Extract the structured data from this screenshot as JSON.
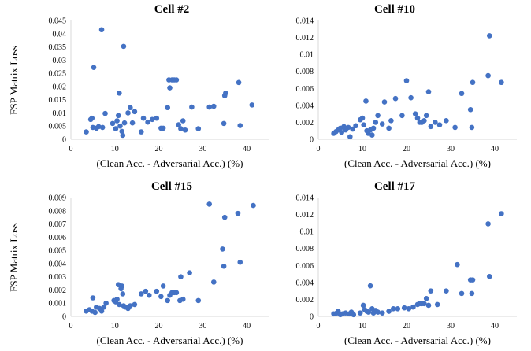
{
  "colors": {
    "marker": "#4472c4",
    "axis": "#d9d9d9",
    "text": "#000000"
  },
  "chart_data": [
    {
      "type": "scatter",
      "title": "Cell #2",
      "xlabel": "(Clean Acc. - Adversarial Acc.) (%)",
      "ylabel": "FSP Matrix Loss",
      "xlim": [
        0,
        45
      ],
      "ylim": [
        0,
        0.045
      ],
      "x_ticks": [
        "0",
        "10",
        "20",
        "30",
        "40"
      ],
      "y_ticks": [
        "0",
        "0.005",
        "0.01",
        "0.015",
        "0.02",
        "0.025",
        "0.03",
        "0.035",
        "0.04",
        "0.045"
      ],
      "points": [
        [
          3.5,
          0.0028
        ],
        [
          4.5,
          0.0075
        ],
        [
          4.8,
          0.008
        ],
        [
          5.0,
          0.0045
        ],
        [
          5.2,
          0.0272
        ],
        [
          5.8,
          0.0042
        ],
        [
          6.3,
          0.0048
        ],
        [
          7.0,
          0.0415
        ],
        [
          7.2,
          0.0045
        ],
        [
          7.8,
          0.0098
        ],
        [
          9.5,
          0.006
        ],
        [
          10.2,
          0.004
        ],
        [
          10.5,
          0.007
        ],
        [
          10.8,
          0.009
        ],
        [
          11.0,
          0.0175
        ],
        [
          11.2,
          0.005
        ],
        [
          11.6,
          0.003
        ],
        [
          11.8,
          0.0015
        ],
        [
          12.0,
          0.0352
        ],
        [
          12.2,
          0.0062
        ],
        [
          13.0,
          0.01
        ],
        [
          13.5,
          0.012
        ],
        [
          14.0,
          0.0062
        ],
        [
          14.5,
          0.0105
        ],
        [
          16.0,
          0.0028
        ],
        [
          16.5,
          0.008
        ],
        [
          17.5,
          0.0065
        ],
        [
          18.5,
          0.0075
        ],
        [
          19.5,
          0.008
        ],
        [
          20.5,
          0.0042
        ],
        [
          21.0,
          0.0042
        ],
        [
          22.0,
          0.012
        ],
        [
          22.3,
          0.0225
        ],
        [
          22.5,
          0.0195
        ],
        [
          23.0,
          0.0225
        ],
        [
          23.5,
          0.0225
        ],
        [
          24.0,
          0.0225
        ],
        [
          24.5,
          0.0055
        ],
        [
          25.0,
          0.004
        ],
        [
          25.5,
          0.007
        ],
        [
          26.0,
          0.0035
        ],
        [
          27.5,
          0.0122
        ],
        [
          29.0,
          0.004
        ],
        [
          31.5,
          0.0122
        ],
        [
          32.5,
          0.0125
        ],
        [
          34.8,
          0.006
        ],
        [
          35.0,
          0.0165
        ],
        [
          35.2,
          0.0175
        ],
        [
          38.2,
          0.0215
        ],
        [
          38.5,
          0.0052
        ],
        [
          41.2,
          0.013
        ]
      ]
    },
    {
      "type": "scatter",
      "title": "Cell #10",
      "xlabel": "(Clean Acc. - Adversarial Acc.) (%)",
      "ylabel": "",
      "xlim": [
        0,
        45
      ],
      "ylim": [
        0,
        0.014
      ],
      "x_ticks": [
        "0",
        "10",
        "20",
        "30",
        "40"
      ],
      "y_ticks": [
        "0",
        "0.002",
        "0.004",
        "0.006",
        "0.008",
        "0.01",
        "0.012",
        "0.014"
      ],
      "points": [
        [
          3.5,
          0.0007
        ],
        [
          4.0,
          0.0009
        ],
        [
          4.5,
          0.0011
        ],
        [
          5.0,
          0.0013
        ],
        [
          5.3,
          0.0008
        ],
        [
          5.8,
          0.0015
        ],
        [
          6.2,
          0.0011
        ],
        [
          6.8,
          0.0014
        ],
        [
          7.2,
          0.0003
        ],
        [
          7.8,
          0.0012
        ],
        [
          8.5,
          0.0016
        ],
        [
          9.5,
          0.0023
        ],
        [
          10.0,
          0.0025
        ],
        [
          10.3,
          0.0017
        ],
        [
          10.8,
          0.0045
        ],
        [
          11.0,
          0.001
        ],
        [
          11.3,
          0.0007
        ],
        [
          11.8,
          0.0011
        ],
        [
          12.2,
          0.0005
        ],
        [
          12.5,
          0.0013
        ],
        [
          13.0,
          0.002
        ],
        [
          13.5,
          0.0028
        ],
        [
          14.5,
          0.0018
        ],
        [
          15.0,
          0.0044
        ],
        [
          16.0,
          0.0013
        ],
        [
          16.5,
          0.0022
        ],
        [
          17.5,
          0.0048
        ],
        [
          19.0,
          0.0028
        ],
        [
          20.0,
          0.0069
        ],
        [
          21.0,
          0.0049
        ],
        [
          22.0,
          0.003
        ],
        [
          22.5,
          0.0025
        ],
        [
          23.0,
          0.002
        ],
        [
          23.5,
          0.002
        ],
        [
          24.0,
          0.0022
        ],
        [
          24.5,
          0.0028
        ],
        [
          25.0,
          0.0056
        ],
        [
          25.5,
          0.0015
        ],
        [
          26.5,
          0.002
        ],
        [
          27.5,
          0.0017
        ],
        [
          29.0,
          0.0022
        ],
        [
          31.0,
          0.0014
        ],
        [
          32.5,
          0.0054
        ],
        [
          34.5,
          0.0035
        ],
        [
          34.8,
          0.0014
        ],
        [
          35.0,
          0.0067
        ],
        [
          38.5,
          0.0075
        ],
        [
          38.8,
          0.0122
        ],
        [
          41.5,
          0.0067
        ]
      ]
    },
    {
      "type": "scatter",
      "title": "Cell #15",
      "xlabel": "(Clean Acc. - Adversarial Acc.) (%)",
      "ylabel": "FSP Matrix Loss",
      "xlim": [
        0,
        45
      ],
      "ylim": [
        0,
        0.009
      ],
      "x_ticks": [
        "0",
        "10",
        "20",
        "30",
        "40"
      ],
      "y_ticks": [
        "0",
        "0.001",
        "0.002",
        "0.003",
        "0.004",
        "0.005",
        "0.006",
        "0.007",
        "0.008",
        "0.009"
      ],
      "points": [
        [
          3.5,
          0.0004
        ],
        [
          4.2,
          0.0005
        ],
        [
          4.8,
          0.0004
        ],
        [
          5.0,
          0.0014
        ],
        [
          5.5,
          0.0003
        ],
        [
          5.8,
          0.0007
        ],
        [
          6.5,
          0.0006
        ],
        [
          7.0,
          0.0004
        ],
        [
          7.5,
          0.0007
        ],
        [
          8.0,
          0.001
        ],
        [
          9.8,
          0.0012
        ],
        [
          10.2,
          0.0011
        ],
        [
          10.5,
          0.0013
        ],
        [
          10.8,
          0.0024
        ],
        [
          11.0,
          0.0009
        ],
        [
          11.4,
          0.0021
        ],
        [
          11.6,
          0.0023
        ],
        [
          11.8,
          0.0017
        ],
        [
          12.0,
          0.0008
        ],
        [
          12.5,
          0.0007
        ],
        [
          13.0,
          0.0006
        ],
        [
          13.5,
          0.0008
        ],
        [
          14.5,
          0.0009
        ],
        [
          16.0,
          0.0017
        ],
        [
          17.0,
          0.0019
        ],
        [
          17.8,
          0.0016
        ],
        [
          19.5,
          0.0019
        ],
        [
          20.5,
          0.0015
        ],
        [
          21.0,
          0.0023
        ],
        [
          22.0,
          0.0012
        ],
        [
          22.5,
          0.0016
        ],
        [
          23.0,
          0.0018
        ],
        [
          23.5,
          0.0018
        ],
        [
          24.0,
          0.0018
        ],
        [
          24.8,
          0.0012
        ],
        [
          25.0,
          0.003
        ],
        [
          25.5,
          0.0013
        ],
        [
          27.0,
          0.0033
        ],
        [
          29.0,
          0.0012
        ],
        [
          31.5,
          0.0085
        ],
        [
          32.5,
          0.0026
        ],
        [
          34.5,
          0.0051
        ],
        [
          34.8,
          0.0038
        ],
        [
          35.0,
          0.0075
        ],
        [
          38.0,
          0.0078
        ],
        [
          38.5,
          0.0041
        ],
        [
          41.5,
          0.0084
        ]
      ]
    },
    {
      "type": "scatter",
      "title": "Cell #17",
      "xlabel": "(Clean Acc. - Adversarial Acc.) (%)",
      "ylabel": "",
      "xlim": [
        0,
        45
      ],
      "ylim": [
        0,
        0.014
      ],
      "x_ticks": [
        "0",
        "10",
        "20",
        "30",
        "40"
      ],
      "y_ticks": [
        "0",
        "0.002",
        "0.004",
        "0.006",
        "0.008",
        "0.01",
        "0.012",
        "0.014"
      ],
      "points": [
        [
          3.5,
          0.0003
        ],
        [
          4.2,
          0.0004
        ],
        [
          4.5,
          0.0006
        ],
        [
          5.0,
          0.0002
        ],
        [
          5.5,
          0.0003
        ],
        [
          6.2,
          0.0004
        ],
        [
          7.0,
          0.0003
        ],
        [
          7.5,
          0.0005
        ],
        [
          8.0,
          0.0002
        ],
        [
          9.5,
          0.0004
        ],
        [
          10.2,
          0.0013
        ],
        [
          10.5,
          0.0008
        ],
        [
          11.0,
          0.0006
        ],
        [
          11.4,
          0.0005
        ],
        [
          11.8,
          0.0036
        ],
        [
          12.2,
          0.0009
        ],
        [
          12.5,
          0.0004
        ],
        [
          13.0,
          0.0007
        ],
        [
          13.5,
          0.0005
        ],
        [
          14.5,
          0.0004
        ],
        [
          16.0,
          0.0006
        ],
        [
          17.0,
          0.0009
        ],
        [
          18.0,
          0.0009
        ],
        [
          19.5,
          0.001
        ],
        [
          20.5,
          0.0009
        ],
        [
          21.5,
          0.0011
        ],
        [
          22.5,
          0.0014
        ],
        [
          23.0,
          0.0015
        ],
        [
          23.5,
          0.0015
        ],
        [
          24.0,
          0.0015
        ],
        [
          24.5,
          0.0021
        ],
        [
          25.0,
          0.0013
        ],
        [
          25.5,
          0.003
        ],
        [
          27.0,
          0.0014
        ],
        [
          29.0,
          0.003
        ],
        [
          31.5,
          0.0061
        ],
        [
          32.5,
          0.0027
        ],
        [
          34.5,
          0.0043
        ],
        [
          34.8,
          0.0027
        ],
        [
          35.0,
          0.0043
        ],
        [
          38.5,
          0.0109
        ],
        [
          38.8,
          0.0047
        ],
        [
          41.5,
          0.0121
        ]
      ]
    }
  ]
}
